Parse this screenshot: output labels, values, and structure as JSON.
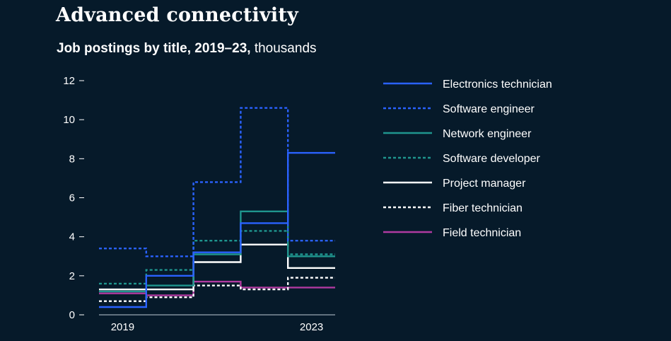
{
  "page": {
    "title": "Advanced connectivity",
    "subtitle_bold": "Job postings by title, 2019–23,",
    "subtitle_light": "thousands"
  },
  "chart_data": {
    "type": "line",
    "step": true,
    "title": "Job postings by title, 2019–23, thousands",
    "xlabel": "",
    "ylabel": "",
    "x": [
      2019,
      2020,
      2021,
      2022,
      2023
    ],
    "x_tick_labels": [
      {
        "x": 2019,
        "label": "2019"
      },
      {
        "x": 2023,
        "label": "2023"
      }
    ],
    "y_ticks": [
      0,
      2,
      4,
      6,
      8,
      10,
      12
    ],
    "ylim": [
      0,
      12
    ],
    "legend_position": "right",
    "series": [
      {
        "name": "Electronics technician",
        "color": "#2a62ff",
        "dash": "solid",
        "values": [
          0.4,
          2.0,
          3.2,
          4.7,
          8.3
        ]
      },
      {
        "name": "Software engineer",
        "color": "#2a62ff",
        "dash": "dotted",
        "values": [
          3.4,
          3.0,
          6.8,
          10.6,
          3.8
        ]
      },
      {
        "name": "Network engineer",
        "color": "#1f958e",
        "dash": "solid",
        "values": [
          1.2,
          1.5,
          3.1,
          5.3,
          3.0
        ]
      },
      {
        "name": "Software developer",
        "color": "#1f958e",
        "dash": "dotted",
        "values": [
          1.6,
          2.3,
          3.8,
          4.3,
          3.1
        ]
      },
      {
        "name": "Project manager",
        "color": "#ffffff",
        "dash": "solid",
        "values": [
          1.3,
          1.3,
          2.7,
          3.6,
          2.4
        ]
      },
      {
        "name": "Fiber technician",
        "color": "#ffffff",
        "dash": "dotted",
        "values": [
          0.7,
          0.9,
          1.5,
          1.3,
          1.9
        ]
      },
      {
        "name": "Field technician",
        "color": "#b03aa0",
        "dash": "solid",
        "values": [
          1.1,
          1.0,
          1.7,
          1.4,
          1.4
        ]
      }
    ]
  }
}
